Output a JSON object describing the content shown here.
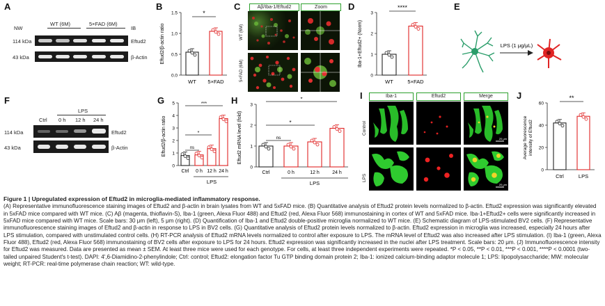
{
  "panels": {
    "A": {
      "letter": "A",
      "nw": "NW",
      "ib": "IB",
      "groups": [
        "WT (6M)",
        "5×FAD (6M)"
      ],
      "rows": [
        {
          "kda": "114 kDa",
          "label": "Eftud2"
        },
        {
          "kda": "43 kDa",
          "label": "β-Actin"
        }
      ]
    },
    "B": {
      "letter": "B",
      "sig": "*",
      "chart_data": {
        "type": "bar",
        "categories": [
          "WT",
          "5×FAD"
        ],
        "values": [
          0.55,
          1.05
        ],
        "ylabel": "Eftud2/β-actin ratio",
        "ylim": [
          0,
          1.5
        ],
        "yticks": [
          "0.0",
          "0.5",
          "1.0",
          "1.5"
        ]
      }
    },
    "C": {
      "letter": "C",
      "header_left": "Aβ/Iba-1/Eftud2",
      "header_right": "Zoom",
      "rows": [
        "WT (6M)",
        "5×FAD (6M)"
      ]
    },
    "D": {
      "letter": "D",
      "sig": "****",
      "chart_data": {
        "type": "bar",
        "categories": [
          "WT",
          "5×FAD"
        ],
        "values": [
          1.0,
          2.35
        ],
        "ylabel": "Iba-1+Eftud2+ (Norm)",
        "ylim": [
          0,
          3
        ],
        "yticks": [
          "0",
          "1",
          "2",
          "3"
        ]
      }
    },
    "E": {
      "letter": "E",
      "arrow_label": "LPS (1 μg/μL)"
    },
    "F": {
      "letter": "F",
      "lps": "LPS",
      "lanes": [
        "Ctrl",
        "0 h",
        "12 h",
        "24 h"
      ],
      "rows": [
        {
          "kda": "114 kDa",
          "label": "Eftud2"
        },
        {
          "kda": "43 kDa",
          "label": "β-Actin"
        }
      ]
    },
    "G": {
      "letter": "G",
      "lps": "LPS",
      "sigs": [
        "***",
        "*",
        "ns"
      ],
      "chart_data": {
        "type": "bar",
        "categories": [
          "Ctrl",
          "0 h",
          "12 h",
          "24 h"
        ],
        "values": [
          0.8,
          0.85,
          1.35,
          3.75
        ],
        "ylabel": "Eftud2/β-actin ratio",
        "ylim": [
          0,
          5
        ],
        "yticks": [
          "0",
          "1",
          "2",
          "3",
          "4",
          "5"
        ]
      }
    },
    "H": {
      "letter": "H",
      "lps": "LPS",
      "sigs": [
        "*",
        "*",
        "ns"
      ],
      "chart_data": {
        "type": "bar",
        "categories": [
          "Ctrl",
          "0 h",
          "12 h",
          "24 h"
        ],
        "values": [
          1.0,
          1.0,
          1.2,
          1.85
        ],
        "ylabel": "Eftud2 mRNA level (fold)",
        "ylim": [
          0,
          3
        ],
        "yticks": [
          "0",
          "1",
          "2",
          "3"
        ]
      }
    },
    "I": {
      "letter": "I",
      "cols": [
        "Iba-1",
        "Eftud2",
        "Merge"
      ],
      "rows": [
        "Control",
        "LPS"
      ],
      "scale": "20 μm"
    },
    "J": {
      "letter": "J",
      "sig": "**",
      "chart_data": {
        "type": "bar",
        "categories": [
          "Ctrl",
          "LPS"
        ],
        "values": [
          42,
          48
        ],
        "ylabel": "Average fluorescence intensity of Eftud2",
        "ylim": [
          0,
          60
        ],
        "yticks": [
          "0",
          "20",
          "40",
          "60"
        ]
      }
    }
  },
  "caption": {
    "title": "Figure 1 | Upregulated expression of Eftud2 in microglia-mediated inflammatory response.",
    "body": "(A) Representative immunofluorescence staining images of Eftud2 and β-actin in brain lysates from WT and 5xFAD mice. (B) Quantitative analysis of Eftud2 protein levels normalized to β-actin. Eftud2 expression was significantly elevated in 5xFAD mice compared with WT mice. (C) Aβ (magenta, thioflavin-S), Iba-1 (green, Alexa Fluor 488) and Eftud2 (red, Alexa Fluor 568) immunostaining in cortex of WT and 5xFAD mice. Iba-1+Eftud2+ cells were significantly increased in 5xFAD mice compared with WT mice. Scale bars: 30 μm (left), 5 μm (right). (D) Quantification of Iba-1 and Eftud2 double-positive microglia normalized to WT mice. (E) Schematic diagram of LPS-stimulated BV2 cells. (F) Representative immunofluorescence staining images of Eftud2 and β-actin in response to LPS in BV2 cells. (G) Quantitative analysis of Eftud2 protein levels normalized to β-actin. Eftud2 expression in microglia was increased, especially 24 hours after LPS stimulation, compared with unstimulated control cells. (H) RT-PCR analysis of Eftud2 mRNA levels normalized to control after exposure to LPS. The mRNA level of Eftud2 was also increased after LPS stimulation. (I) Iba-1 (green, Alexa Fluor 488), Eftud2 (red, Alexa Fluor 568) immunostaining of BV2 cells after exposure to LPS for 24 hours. Eftud2 expression was significantly increased in the nuclei after LPS treatment. Scale bars: 20 μm. (J) Immunofluorescence intensity for Eftud2 was measured. Data are presented as mean ± SEM. At least three mice were used for each genotype. For cells, at least three independent experiments were repeated. *P < 0.05, **P < 0.01, ***P < 0.001, ****P < 0.0001 (two-tailed unpaired Student's t-test). DAPI: 4',6-Diamidino-2-phenylindole; Ctrl: control; Eftud2: elongation factor Tu GTP binding domain protein 2; Iba-1: ionized calcium-binding adaptor molecule 1; LPS: lipopolysaccharide; MW: molecular weight; RT-PCR: real-time polymerase chain reaction; WT: wild-type."
  }
}
